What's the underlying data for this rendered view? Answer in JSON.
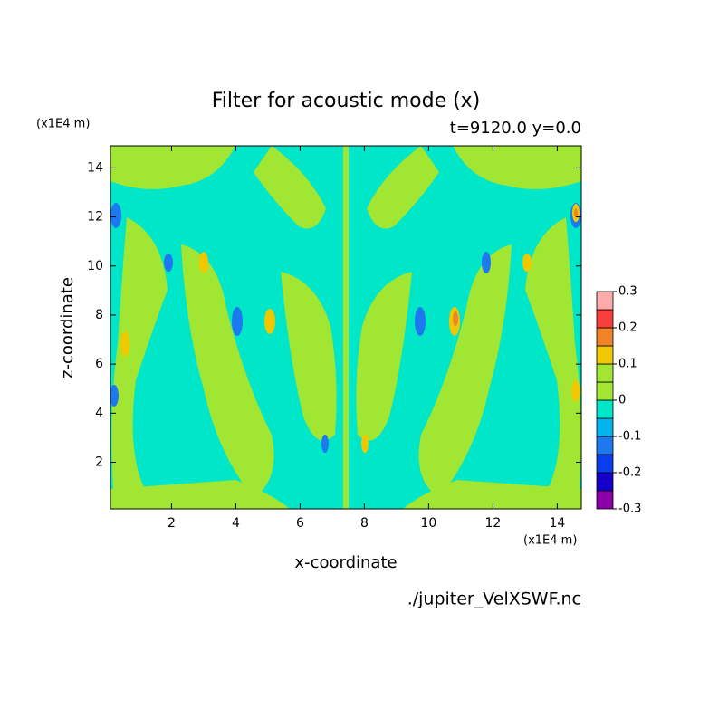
{
  "chart_data": {
    "type": "contour",
    "title": "Filter for acoustic mode (x)",
    "subtitle": "t=9120.0 y=0.0",
    "x_label": "x-coordinate",
    "y_label": "z-coordinate",
    "x_unit": "(x1E4 m)",
    "y_unit": "(x1E4 m)",
    "source": "./jupiter_VelXSWF.nc",
    "xlim": [
      0.1,
      14.75
    ],
    "ylim": [
      0.1,
      14.9
    ],
    "xticks": [
      2,
      4,
      6,
      8,
      10,
      12,
      14
    ],
    "yticks": [
      2,
      4,
      6,
      8,
      10,
      12,
      14
    ],
    "colorbar": {
      "levels": [
        -0.3,
        -0.25,
        -0.2,
        -0.15,
        -0.1,
        -0.05,
        0,
        0.05,
        0.1,
        0.15,
        0.2,
        0.25,
        0.3
      ],
      "ticks": [
        -0.3,
        -0.2,
        -0.1,
        0,
        0.1,
        0.2,
        0.3
      ],
      "colors": [
        "#8c00aa",
        "#1400c8",
        "#0a3cf0",
        "#1e78f0",
        "#00b4f0",
        "#00e6c8",
        "#a0e632",
        "#a0e632",
        "#f0c800",
        "#f08228",
        "#fa3c3c",
        "#ffaaaa"
      ]
    }
  }
}
